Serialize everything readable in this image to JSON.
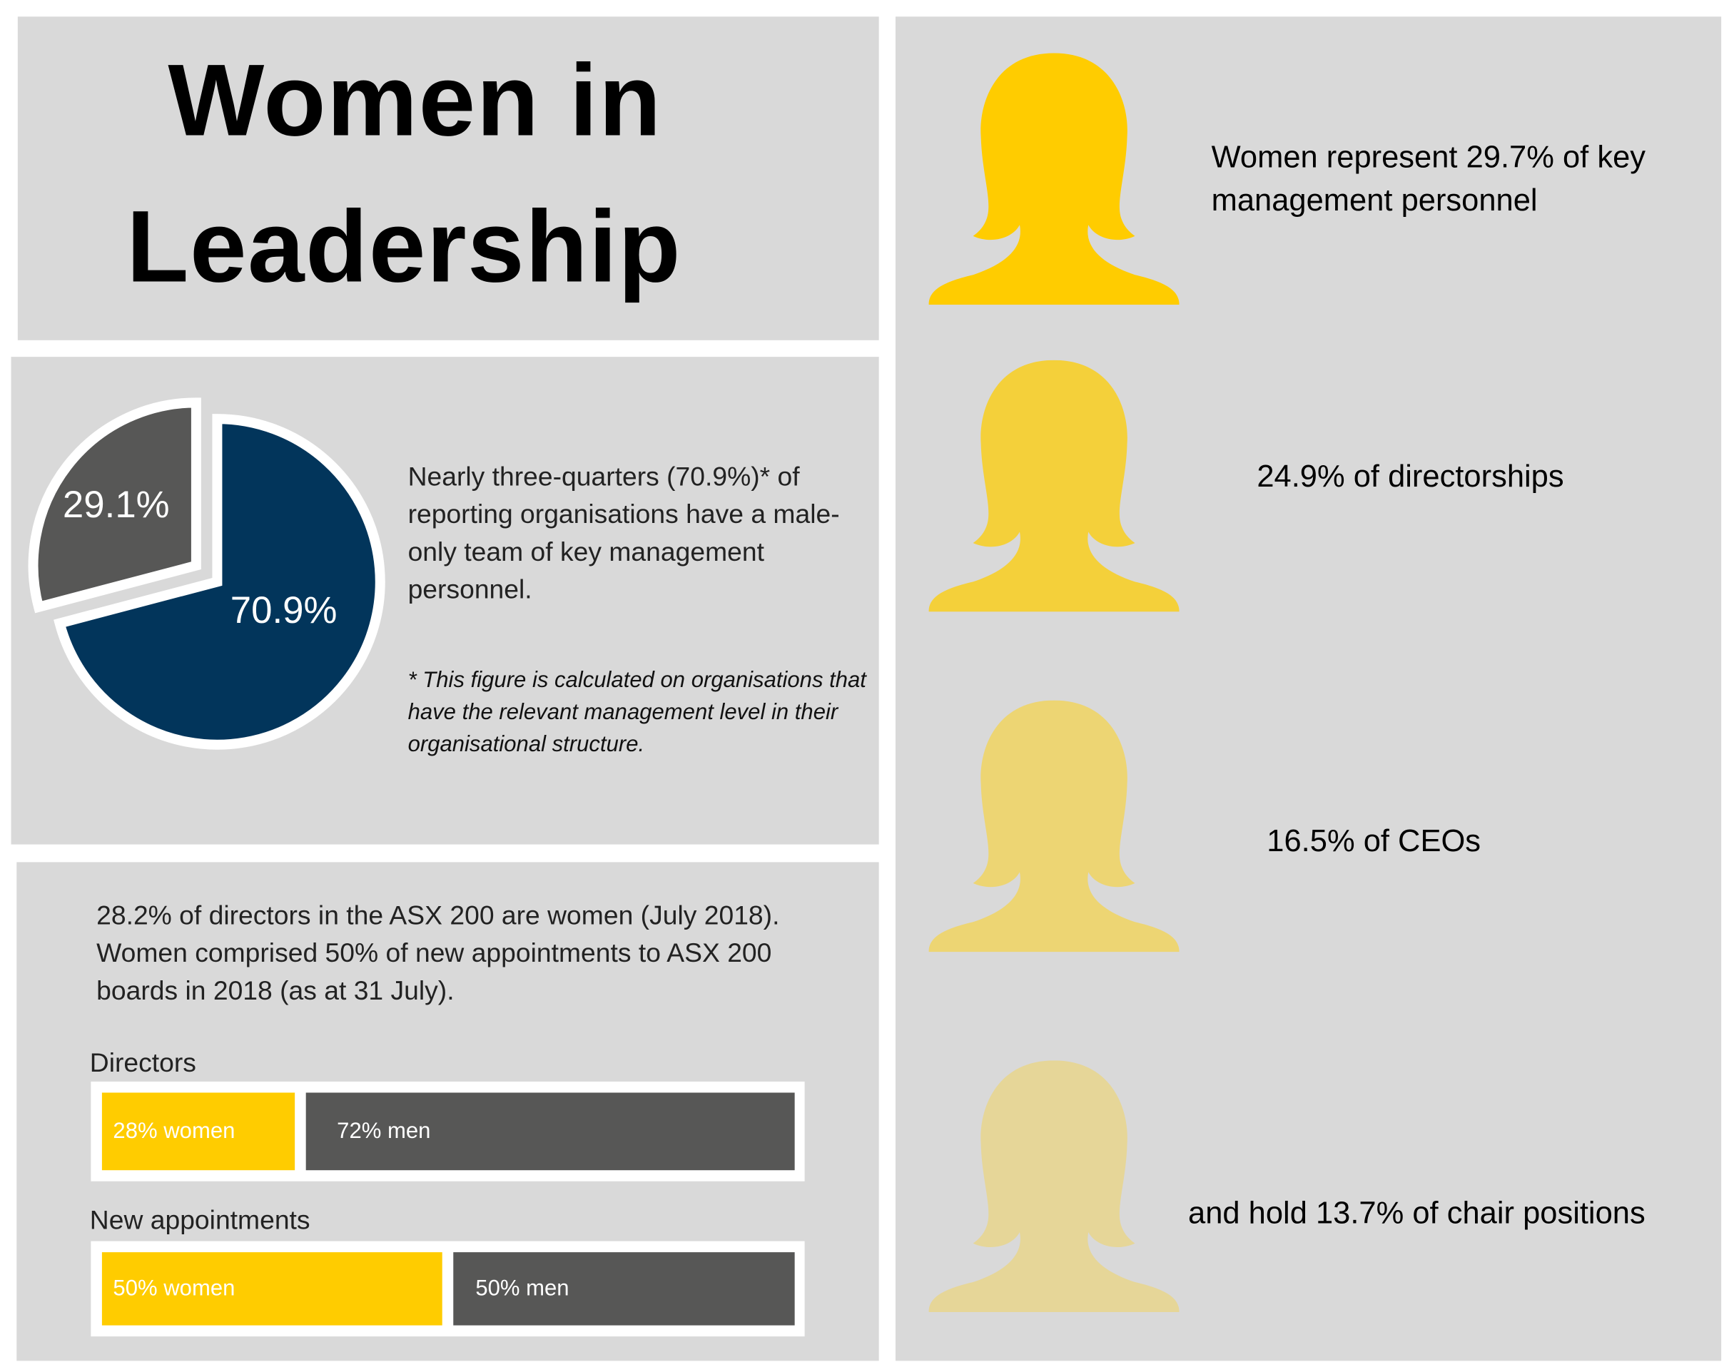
{
  "title": {
    "line1": "Women in",
    "line2": "Leadership"
  },
  "pie_section": {
    "description": "Nearly three-quarters (70.9%)* of reporting organisations have a male-only team of key management personnel.",
    "footnote": "* This figure is calculated on organisations that have the relevant management level in their organisational structure.",
    "chart_data": {
      "type": "pie",
      "slices": [
        {
          "label": "70.9%",
          "value": 70.9,
          "color": "#02355B"
        },
        {
          "label": "29.1%",
          "value": 29.1,
          "color": "#575756",
          "exploded": true
        }
      ]
    }
  },
  "bars_section": {
    "intro": "28.2% of directors in the ASX 200 are women (July 2018). Women comprised 50% of new appointments to ASX 200 boards in 2018 (as at 31 July).",
    "chart_data": {
      "type": "bar",
      "orientation": "horizontal-stacked",
      "categories": [
        "Directors",
        "New appointments"
      ],
      "series": [
        {
          "name": "women",
          "values": [
            28,
            50
          ],
          "labels": [
            "28% women",
            "50% women"
          ],
          "color": "#FFCC00"
        },
        {
          "name": "men",
          "values": [
            72,
            50
          ],
          "labels": [
            "72%  men",
            "50%  men"
          ],
          "color": "#575756"
        }
      ]
    }
  },
  "stats": [
    {
      "text": "Women represent  29.7% of key management  personnel",
      "icon": "woman-silhouette-icon",
      "color": "#FFCC00"
    },
    {
      "text": "24.9% of directorships",
      "icon": "woman-silhouette-icon",
      "color": "#F4D03A"
    },
    {
      "text": "16.5% of CEOs",
      "icon": "woman-silhouette-icon",
      "color": "#EDD573"
    },
    {
      "text": "and hold 13.7% of chair positions",
      "icon": "woman-silhouette-icon",
      "color": "#E6D698"
    }
  ]
}
